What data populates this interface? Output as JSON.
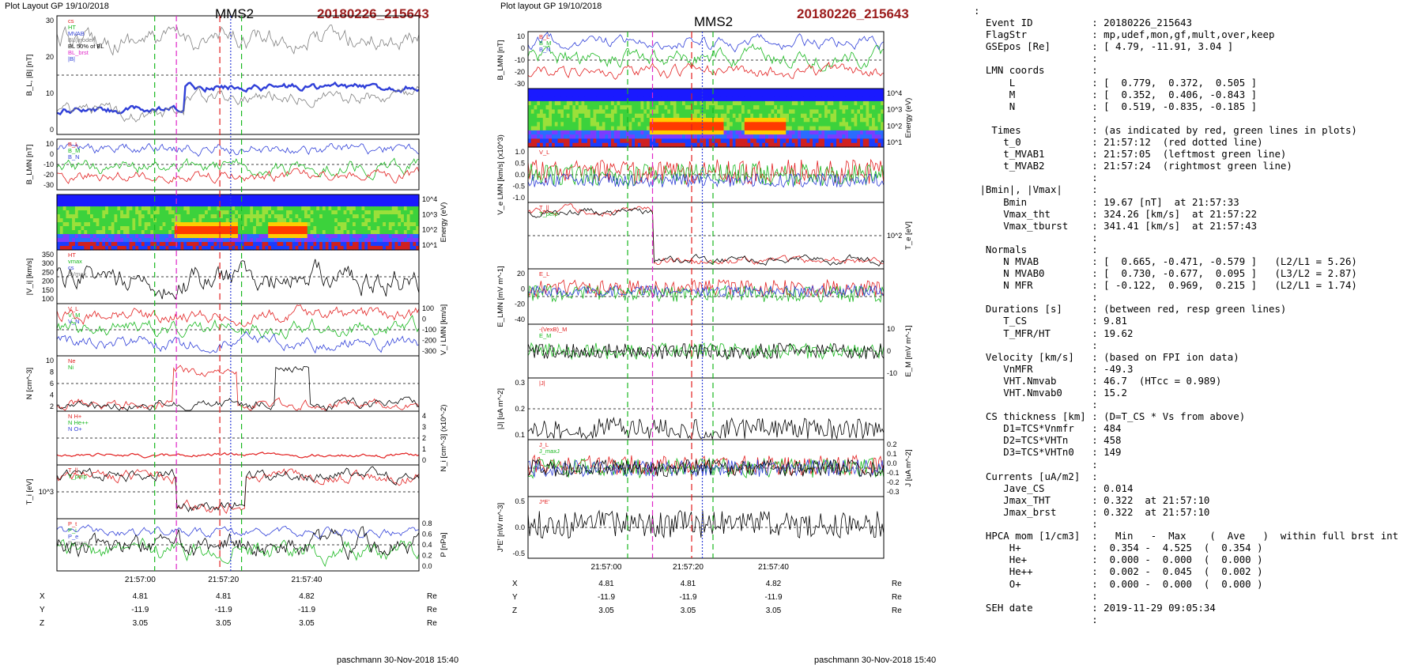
{
  "colors": {
    "event_red": "#9b1c1c",
    "blue": "#2f3fd8",
    "red": "#e21f1f",
    "green": "#19b81f",
    "black": "#000000",
    "magenta": "#e026c8",
    "grey": "#808080"
  },
  "left": {
    "header_left": "Plot Layout GP 19/10/2018",
    "title": "MMS2",
    "event": "20180226_215643",
    "footer": "paschmann 30-Nov-2018 15:40",
    "time_ticks": [
      "21:57:00",
      "21:57:20",
      "21:57:40"
    ],
    "coord_rows": [
      {
        "label": "X",
        "values": [
          "4.81",
          "4.81",
          "4.82"
        ],
        "unit": "Re"
      },
      {
        "label": "Y",
        "values": [
          "-11.9",
          "-11.9",
          "-11.9"
        ],
        "unit": "Re"
      },
      {
        "label": "Z",
        "values": [
          "3.05",
          "3.05",
          "3.05"
        ],
        "unit": "Re"
      }
    ],
    "panels": [
      {
        "ylabel": "B_L, |B| [nT]",
        "side": "left",
        "ticks": [
          "30",
          "20",
          "10",
          "0"
        ],
        "legend": [
          "cs",
          "HT",
          "MVAB",
          "BL(model)",
          "BL 50% of BL",
          "BL_brst",
          "|B|"
        ]
      },
      {
        "ylabel": "B_LMN [nT]",
        "side": "left",
        "ticks": [
          "10",
          "0",
          "-10",
          "-20",
          "-30"
        ],
        "legend": [
          "B_L",
          "B_M",
          "B_N"
        ]
      },
      {
        "ylabel": "Energy (eV)",
        "side": "right",
        "ticks": [
          "10^4",
          "10^3",
          "10^2",
          "10^1"
        ],
        "legend": []
      },
      {
        "ylabel": "|V_i| [km/s]",
        "side": "left",
        "ticks": [
          "350",
          "300",
          "250",
          "200",
          "150",
          "100"
        ],
        "legend": [
          "HT",
          "vmax",
          "cs",
          "dVmax"
        ]
      },
      {
        "ylabel": "V_i LMN [km/s]",
        "side": "right",
        "ticks": [
          "100",
          "0",
          "-100",
          "-200",
          "-300"
        ],
        "legend": [
          "V_L",
          "V_M",
          "V_N"
        ]
      },
      {
        "ylabel": "N [cm^-3]",
        "side": "left",
        "ticks": [
          "10",
          "8",
          "6",
          "4",
          "2"
        ],
        "legend": [
          "Ne",
          "Ni"
        ]
      },
      {
        "ylabel": "N_i [cm^-3] (x10^-2)",
        "side": "right",
        "ticks": [
          "4",
          "3",
          "2",
          "1",
          "0"
        ],
        "legend": [
          "N H+",
          "N He++",
          "N O+"
        ]
      },
      {
        "ylabel": "T_i [eV]",
        "side": "left",
        "ticks": [
          "10^3"
        ],
        "legend": [
          "T_||",
          "T_perp"
        ]
      },
      {
        "ylabel": "P [nPa]",
        "side": "right",
        "ticks": [
          "0.8",
          "0.6",
          "0.4",
          "0.2",
          "0.0"
        ],
        "legend": [
          "P_t",
          "P_i",
          "P_e",
          "P_mag"
        ]
      }
    ]
  },
  "middle": {
    "header_left": "Plot layout GP 19/10/2018",
    "title": "MMS2",
    "event": "20180226_215643",
    "footer": "paschmann 30-Nov-2018 15:40",
    "time_ticks": [
      "21:57:00",
      "21:57:20",
      "21:57:40"
    ],
    "coord_rows": [
      {
        "label": "X",
        "values": [
          "4.81",
          "4.81",
          "4.82"
        ],
        "unit": "Re"
      },
      {
        "label": "Y",
        "values": [
          "-11.9",
          "-11.9",
          "-11.9"
        ],
        "unit": "Re"
      },
      {
        "label": "Z",
        "values": [
          "3.05",
          "3.05",
          "3.05"
        ],
        "unit": "Re"
      }
    ],
    "panels": [
      {
        "ylabel": "B_LMN [nT]",
        "side": "left",
        "ticks": [
          "10",
          "0",
          "-10",
          "-20",
          "-30"
        ],
        "legend": [
          "B_L",
          "B_M",
          "B_N"
        ]
      },
      {
        "ylabel": "Energy (eV)",
        "side": "right",
        "ticks": [
          "10^4",
          "10^3",
          "10^2",
          "10^1"
        ],
        "legend": []
      },
      {
        "ylabel": "V_e LMN [km/s] (x10^3)",
        "side": "left",
        "ticks": [
          "1.0",
          "0.5",
          "0.0",
          "-0.5",
          "-1.0"
        ],
        "legend": [
          "V_L"
        ]
      },
      {
        "ylabel": "T_e [eV]",
        "side": "right",
        "ticks": [
          "10^2"
        ],
        "legend": [
          "T_||",
          "T_perp"
        ]
      },
      {
        "ylabel": "E_LMN [mV m^-1]",
        "side": "left",
        "ticks": [
          "20",
          "0",
          "-20",
          "-40"
        ],
        "legend": [
          "E_L"
        ]
      },
      {
        "ylabel": "E_M [mV m^-1]",
        "side": "right",
        "ticks": [
          "10",
          "0",
          "-10"
        ],
        "legend": [
          "-(VexB)_M",
          "E_M"
        ]
      },
      {
        "ylabel": "|J| [uA m^-2]",
        "side": "left",
        "ticks": [
          "0.3",
          "0.2",
          "0.1"
        ],
        "legend": [
          "|J|"
        ]
      },
      {
        "ylabel": "J [uA m^-2]",
        "side": "right",
        "ticks": [
          "0.2",
          "0.1",
          "0.0",
          "-0.1",
          "-0.2",
          "-0.3"
        ],
        "legend": [
          "J_L",
          "J_maxJ"
        ]
      },
      {
        "ylabel": "J*E' [nW m^-3]",
        "side": "left",
        "ticks": [
          "0.5",
          "0.0",
          "-0.5"
        ],
        "legend": [
          "J*E'"
        ]
      }
    ]
  },
  "info": {
    "lines": [
      ":",
      "  Event ID          : 20180226_215643",
      "  FlagStr           : mp,udef,mon,gf,mult,over,keep",
      "  GSEpos [Re]       : [ 4.79, -11.91, 3.04 ]",
      "                    :",
      "  LMN coords        :",
      "      L             : [  0.779,  0.372,  0.505 ]",
      "      M             : [  0.352,  0.406, -0.843 ]",
      "      N             : [  0.519, -0.835, -0.185 ]",
      "                    :",
      "   Times            : (as indicated by red, green lines in plots)",
      "     t_0            : 21:57:12  (red dotted line)",
      "     t_MVAB1        : 21:57:05  (leftmost green line)",
      "     t_MVAB2        : 21:57:24  (rightmost green line)",
      "                    :",
      " |Bmin|, |Vmax|     :",
      "     Bmin           : 19.67 [nT]  at 21:57:33",
      "     Vmax_tht       : 324.26 [km/s]  at 21:57:22",
      "     Vmax_tburst    : 341.41 [km/s]  at 21:57:43",
      "                    :",
      "  Normals           :",
      "     N MVAB         : [  0.665, -0.471, -0.579 ]   (L2/L1 = 5.26)",
      "     N MVAB0        : [  0.730, -0.677,  0.095 ]   (L3/L2 = 2.87)",
      "     N MFR          : [ -0.122,  0.969,  0.215 ]   (L2/L1 = 1.74)",
      "                    :",
      "  Durations [s]     : (between red, resp green lines)",
      "     T_CS           : 9.81",
      "     T_MFR/HT       : 19.62",
      "                    :",
      "  Velocity [km/s]   : (based on FPI ion data)",
      "     VnMFR          : -49.3",
      "     VHT.Nmvab      : 46.7  (HTcc = 0.989)",
      "     VHT.Nmvab0     : 15.2",
      "                    :",
      "  CS thickness [km] : (D=T_CS * Vs from above)",
      "     D1=TCS*Vnmfr   : 484",
      "     D2=TCS*VHTn    : 458",
      "     D3=TCS*VHTn0   : 149",
      "                    :",
      "  Currents [uA/m2]  :",
      "     Jave_CS        : 0.014",
      "     Jmax_THT       : 0.322  at 21:57:10",
      "     Jmax_brst      : 0.322  at 21:57:10",
      "                    :",
      "  HPCA mom [1/cm3]  :   Min   -  Max    (  Ave   )  within full brst int",
      "      H+            :  0.354 -  4.525  (  0.354 )",
      "      He+           :  0.000 -  0.000  (  0.000 )",
      "      He++          :  0.002 -  0.045  (  0.002 )",
      "      O+            :  0.000 -  0.000  (  0.000 )",
      "                    :",
      "  SEH date          : 2019-11-29 09:05:34",
      "                    :"
    ]
  },
  "chart_data": [
    {
      "type": "line",
      "title": "MMS2",
      "subtitle": "20180226_215643",
      "x_ticks": [
        "21:57:00",
        "21:57:20",
        "21:57:40"
      ],
      "markers": {
        "t_MVAB1": "21:57:05",
        "t_0": "21:57:12",
        "t_MVAB2": "21:57:24"
      },
      "panels": [
        "B_L,|B| [nT]",
        "B_LMN [nT]",
        "Energy (eV)",
        "|V_i| [km/s]",
        "V_i LMN [km/s]",
        "N [cm^-3]",
        "N_i [cm^-3]",
        "T_i [eV]",
        "P [nPa]"
      ]
    },
    {
      "type": "line",
      "title": "MMS2",
      "subtitle": "20180226_215643",
      "x_ticks": [
        "21:57:00",
        "21:57:20",
        "21:57:40"
      ],
      "markers": {
        "t_MVAB1": "21:57:05",
        "t_0": "21:57:12",
        "t_MVAB2": "21:57:24"
      },
      "panels": [
        "B_LMN [nT]",
        "Energy (eV)",
        "V_e LMN [km/s]",
        "T_e [eV]",
        "E_LMN [mV m^-1]",
        "E_M [mV m^-1]",
        "|J| [uA m^-2]",
        "J [uA m^-2]",
        "J*E' [nW m^-3]"
      ]
    }
  ]
}
